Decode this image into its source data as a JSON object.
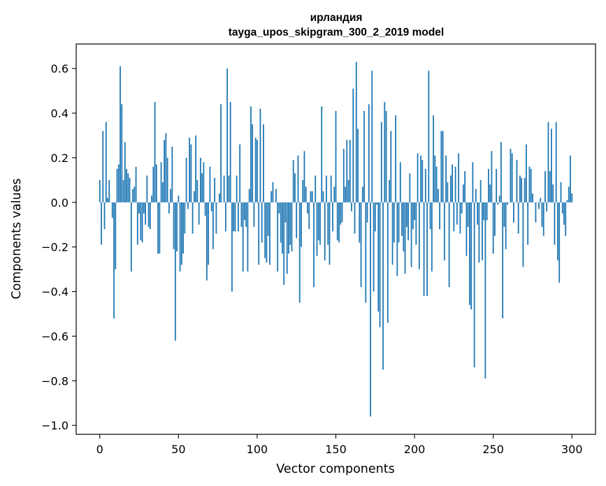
{
  "chart_data": {
    "type": "bar",
    "title_line1": "ирландия",
    "title_line2": "tayga_upos_skipgram_300_2_2019 model",
    "xlabel": "Vector components",
    "ylabel": "Components values",
    "xlim": [
      -15,
      315
    ],
    "ylim": [
      -1.04,
      0.71
    ],
    "xticks": [
      0,
      50,
      100,
      150,
      200,
      250,
      300
    ],
    "xtick_labels": [
      "0",
      "50",
      "100",
      "150",
      "200",
      "250",
      "300"
    ],
    "yticks": [
      0.6,
      0.4,
      0.2,
      0.0,
      -0.2,
      -0.4,
      -0.6,
      -0.8,
      -1.0
    ],
    "ytick_labels": [
      "0.6",
      "0.4",
      "0.2",
      "0.0",
      "−0.2",
      "−0.4",
      "−0.6",
      "−0.8",
      "−1.0"
    ],
    "bar_color": "#1f77b4",
    "values": [
      0.1,
      -0.19,
      0.32,
      -0.12,
      0.36,
      0.02,
      0.1,
      0.0,
      -0.07,
      -0.52,
      -0.3,
      0.15,
      0.17,
      0.61,
      0.44,
      0.1,
      0.27,
      0.15,
      0.13,
      0.11,
      -0.31,
      0.06,
      0.07,
      0.16,
      -0.19,
      -0.05,
      -0.17,
      -0.18,
      -0.05,
      -0.1,
      0.12,
      -0.11,
      -0.12,
      0.03,
      0.16,
      0.45,
      0.17,
      -0.23,
      -0.23,
      0.18,
      0.09,
      0.28,
      0.31,
      0.2,
      -0.05,
      0.06,
      0.25,
      -0.21,
      -0.62,
      -0.22,
      0.03,
      -0.31,
      -0.28,
      -0.23,
      -0.14,
      0.2,
      -0.03,
      0.29,
      0.26,
      -0.14,
      0.05,
      0.3,
      0.1,
      -0.1,
      0.2,
      0.13,
      0.18,
      -0.06,
      -0.35,
      -0.28,
      0.16,
      -0.04,
      -0.21,
      0.11,
      -0.14,
      0.0,
      0.04,
      0.44,
      0.0,
      0.12,
      -0.13,
      0.6,
      0.12,
      0.45,
      -0.4,
      -0.13,
      -0.13,
      0.12,
      -0.13,
      0.26,
      -0.11,
      -0.31,
      -0.08,
      -0.11,
      -0.31,
      0.06,
      0.43,
      0.35,
      -0.11,
      0.29,
      0.28,
      -0.28,
      0.42,
      -0.18,
      0.35,
      -0.25,
      -0.27,
      -0.15,
      -0.28,
      0.05,
      0.09,
      0.0,
      0.06,
      -0.31,
      -0.05,
      -0.18,
      -0.23,
      -0.37,
      -0.09,
      -0.32,
      -0.23,
      -0.19,
      -0.22,
      0.19,
      0.13,
      -0.16,
      0.21,
      -0.45,
      -0.2,
      0.1,
      0.23,
      0.07,
      -0.05,
      -0.12,
      0.05,
      0.05,
      -0.38,
      0.12,
      -0.24,
      -0.17,
      -0.19,
      0.43,
      0.05,
      -0.26,
      0.12,
      -0.19,
      -0.28,
      0.12,
      -0.13,
      0.07,
      0.41,
      -0.17,
      -0.18,
      -0.1,
      -0.09,
      0.24,
      0.07,
      0.28,
      0.1,
      0.28,
      -0.04,
      0.51,
      -0.14,
      0.63,
      0.33,
      -0.18,
      -0.38,
      0.07,
      0.41,
      -0.45,
      -0.09,
      0.44,
      -0.96,
      0.59,
      -0.4,
      -0.13,
      -0.01,
      -0.49,
      -0.56,
      0.36,
      -0.75,
      0.45,
      0.41,
      -0.54,
      0.1,
      0.32,
      -0.28,
      -0.18,
      0.39,
      -0.33,
      -0.18,
      0.18,
      -0.15,
      -0.22,
      -0.32,
      -0.11,
      -0.17,
      0.13,
      -0.29,
      -0.12,
      -0.08,
      -0.19,
      0.22,
      -0.3,
      0.21,
      0.19,
      -0.42,
      0.15,
      -0.42,
      0.59,
      -0.12,
      -0.31,
      0.39,
      0.21,
      0.16,
      0.06,
      -0.12,
      0.32,
      0.32,
      -0.26,
      0.21,
      0.09,
      -0.38,
      0.12,
      0.17,
      -0.13,
      0.16,
      -0.1,
      0.22,
      -0.14,
      -0.05,
      0.08,
      0.14,
      -0.24,
      -0.11,
      -0.46,
      -0.48,
      0.18,
      -0.74,
      0.06,
      -0.1,
      -0.27,
      0.1,
      -0.26,
      -0.08,
      -0.79,
      -0.08,
      0.15,
      0.08,
      0.23,
      -0.23,
      -0.15,
      0.15,
      -0.01,
      0.03,
      0.27,
      -0.52,
      -0.11,
      -0.21,
      -0.01,
      0.0,
      0.24,
      0.22,
      -0.09,
      0.0,
      0.19,
      -0.14,
      0.12,
      0.11,
      -0.29,
      0.11,
      0.26,
      -0.19,
      0.16,
      0.15,
      0.04,
      0.0,
      -0.09,
      0.0,
      -0.03,
      0.02,
      -0.11,
      -0.15,
      0.14,
      -0.04,
      0.36,
      0.14,
      0.33,
      0.08,
      -0.19,
      0.36,
      -0.26,
      -0.36,
      0.09,
      -0.05,
      -0.1,
      -0.15,
      0.01,
      0.07,
      0.21,
      0.04
    ]
  }
}
